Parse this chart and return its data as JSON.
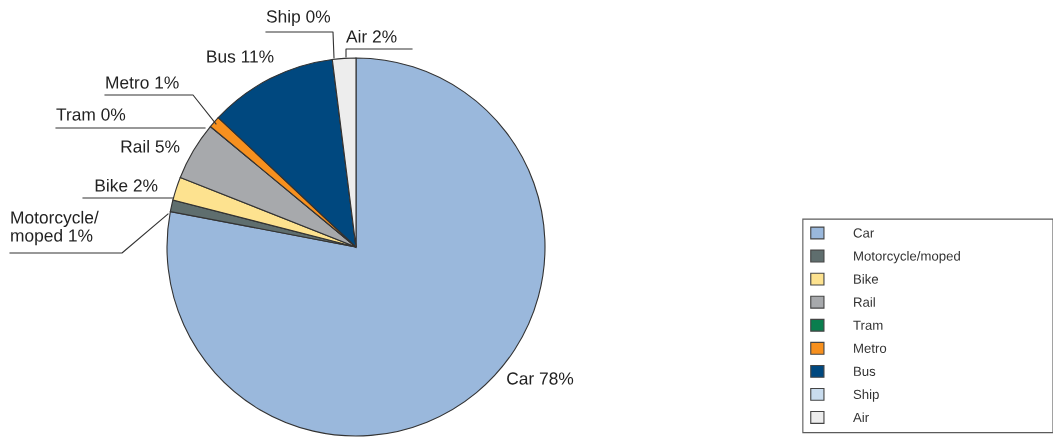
{
  "chart_data": {
    "type": "pie",
    "categories": [
      "Car",
      "Motorcycle/moped",
      "Bike",
      "Rail",
      "Tram",
      "Metro",
      "Bus",
      "Ship",
      "Air"
    ],
    "values": [
      78,
      1,
      2,
      5,
      0,
      1,
      11,
      0,
      2
    ],
    "colors": [
      "#9ab8dc",
      "#5f6e6e",
      "#fde28f",
      "#a7a9ac",
      "#0a7e4e",
      "#f7901e",
      "#00487f",
      "#c9dcee",
      "#ededed"
    ],
    "value_labels": [
      "Car 78%",
      "Motorcycle/\nmoped 1%",
      "Bike 2%",
      "Rail 5%",
      "Tram 0%",
      "Metro 1%",
      "Bus 11%",
      "Ship 0%",
      "Air 2%"
    ],
    "legend": "right"
  }
}
